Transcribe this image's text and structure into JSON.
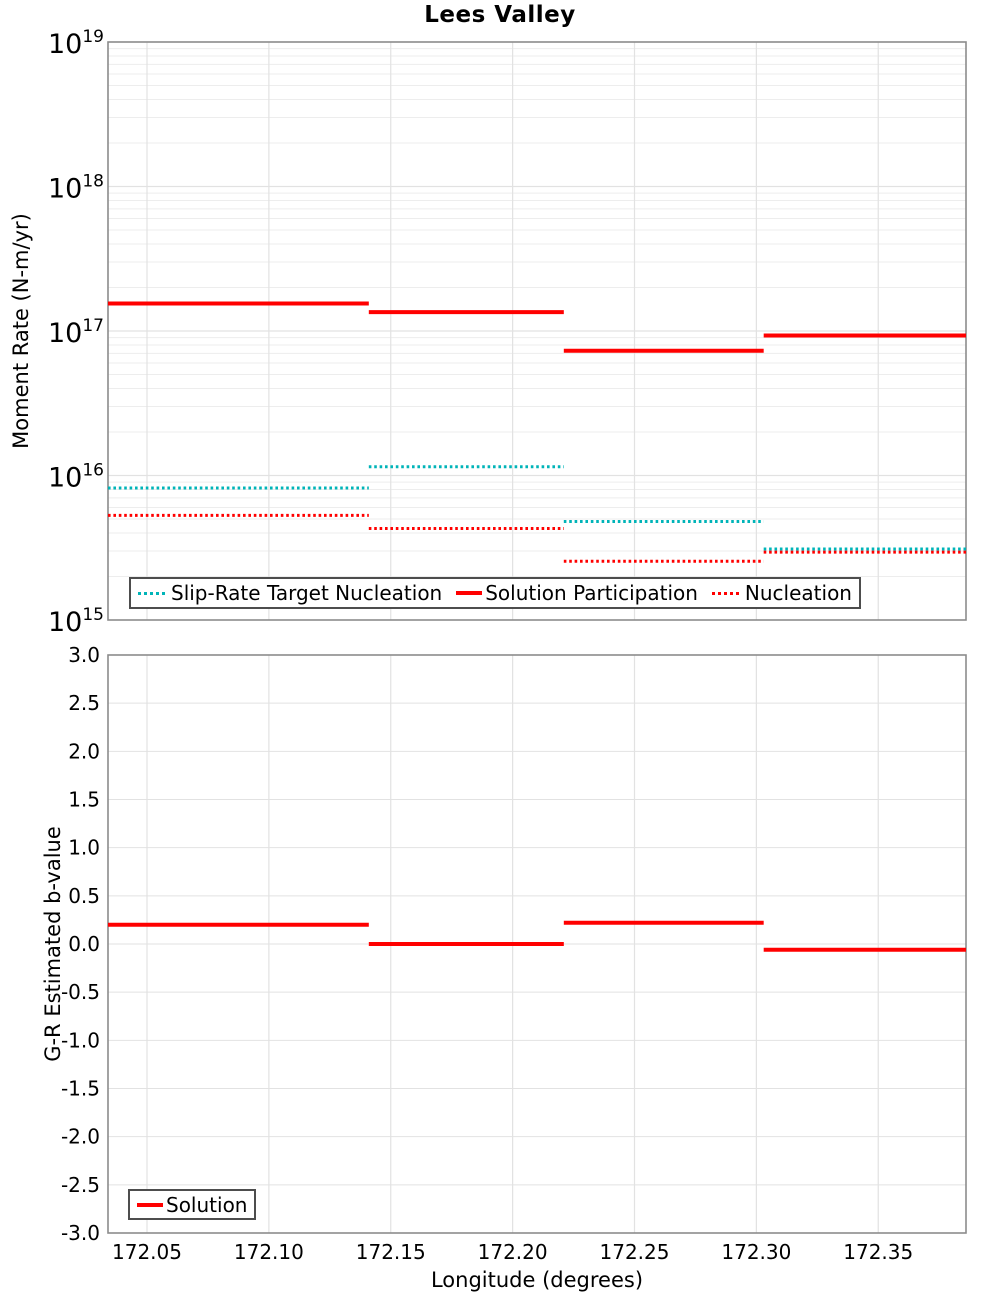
{
  "colors": {
    "red": "#ff0000",
    "teal": "#00b4b8",
    "grid_minor": "#ededed",
    "grid_major": "#e2e2e2",
    "axis_frame": "#8c8c8c",
    "legend_border": "#4d4d4d",
    "text": "#000000"
  },
  "chart_data": [
    {
      "type": "line",
      "subtype": "horizontal-step-segments",
      "title": "Lees Valley",
      "ylabel": "Moment Rate (N-m/yr)",
      "yscale": "log",
      "ylim": [
        1000000000000000.0,
        1e+19
      ],
      "ylim_exponents": [
        15,
        19
      ],
      "ytick_exponents": [
        19,
        18,
        17,
        16,
        15
      ],
      "xlim": [
        172.034,
        172.386
      ],
      "xticks": [
        172.05,
        172.1,
        172.15,
        172.2,
        172.25,
        172.3,
        172.35
      ],
      "xtick_labels": [
        "172.05",
        "172.10",
        "172.15",
        "172.20",
        "172.25",
        "172.30",
        "172.35"
      ],
      "x_tick_labels_shown": false,
      "grid": true,
      "legend_position": "lower left",
      "segment_edges": [
        172.034,
        172.141,
        172.221,
        172.303,
        172.386
      ],
      "series": [
        {
          "name": "Slip-Rate Target Nucleation",
          "color_key": "teal",
          "line_style": "dotted",
          "values": [
            8200000000000000.0,
            1.15e+16,
            4800000000000000.0,
            3100000000000000.0
          ]
        },
        {
          "name": "Solution Participation",
          "color_key": "red",
          "line_style": "solid",
          "values": [
            1.55e+17,
            1.35e+17,
            7.3e+16,
            9.3e+16
          ]
        },
        {
          "name": "Nucleation",
          "color_key": "red",
          "line_style": "dotted",
          "values": [
            5300000000000000.0,
            4300000000000000.0,
            2550000000000000.0,
            2950000000000000.0
          ]
        }
      ]
    },
    {
      "type": "line",
      "subtype": "horizontal-step-segments",
      "ylabel": "G-R Estimated b-value",
      "xlabel": "Longitude (degrees)",
      "yscale": "linear",
      "ylim": [
        -3.0,
        3.0
      ],
      "yticks": [
        3.0,
        2.5,
        2.0,
        1.5,
        1.0,
        0.5,
        0.0,
        -0.5,
        -1.0,
        -1.5,
        -2.0,
        -2.5,
        -3.0
      ],
      "ytick_labels": [
        "3.0",
        "2.5",
        "2.0",
        "1.5",
        "1.0",
        "0.5",
        "0.0",
        "-0.5",
        "-1.0",
        "-1.5",
        "-2.0",
        "-2.5",
        "-3.0"
      ],
      "xlim": [
        172.034,
        172.386
      ],
      "xticks": [
        172.05,
        172.1,
        172.15,
        172.2,
        172.25,
        172.3,
        172.35
      ],
      "xtick_labels": [
        "172.05",
        "172.10",
        "172.15",
        "172.20",
        "172.25",
        "172.30",
        "172.35"
      ],
      "x_tick_labels_shown": true,
      "grid": true,
      "legend_position": "lower left",
      "segment_edges": [
        172.034,
        172.141,
        172.221,
        172.303,
        172.386
      ],
      "series": [
        {
          "name": "Solution",
          "color_key": "red",
          "line_style": "solid",
          "values": [
            0.2,
            0.0,
            0.22,
            -0.06
          ]
        }
      ]
    }
  ]
}
